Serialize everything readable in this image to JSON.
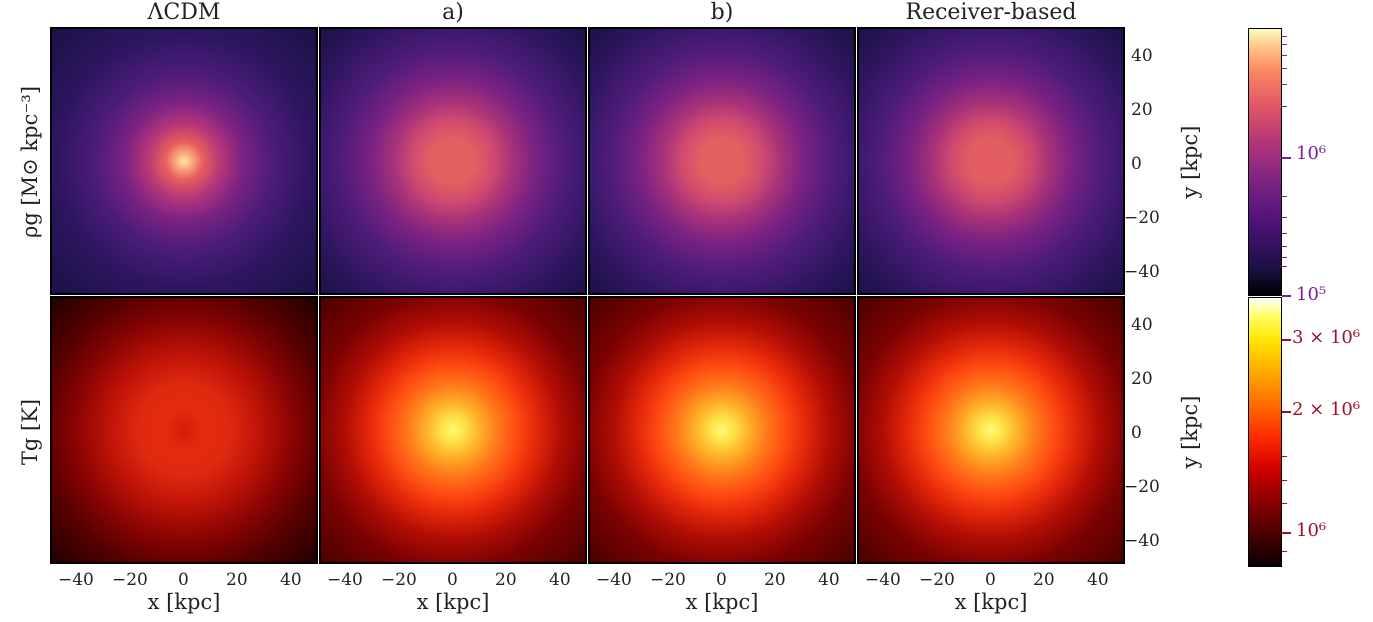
{
  "columns": [
    "ΛCDM",
    "a)",
    "b)",
    "Receiver-based"
  ],
  "rows": [
    {
      "label": "ρg [M⊙ kpc⁻³]",
      "cmap": "magma"
    },
    {
      "label": "Tg [K]",
      "cmap": "hot"
    }
  ],
  "x_axis": {
    "label": "x [kpc]",
    "ticks": [
      "−40",
      "−20",
      "0",
      "20",
      "40"
    ]
  },
  "y_axis": {
    "label": "y [kpc]",
    "ticks": [
      "40",
      "20",
      "0",
      "−20",
      "−40"
    ]
  },
  "colorbars": {
    "density": {
      "ticks": [
        "10⁶",
        "10⁵"
      ],
      "color": "#7a1f9a"
    },
    "temperature": {
      "ticks": [
        "3 × 10⁶",
        "2 × 10⁶",
        "10⁶"
      ],
      "color": "#a0102a"
    }
  },
  "chart_data": [
    {
      "type": "heatmap",
      "title": "",
      "row": "ρg [M⊙ kpc⁻³]",
      "xlabel": "x [kpc]",
      "ylabel": "y [kpc]",
      "xlim": [
        -50,
        50
      ],
      "ylim": [
        -50,
        50
      ],
      "colormap": "magma",
      "scale": "log",
      "clim": [
        100000,
        9000000
      ],
      "panels": [
        {
          "model": "ΛCDM",
          "center_value": 7000000,
          "core_radius_kpc": 5,
          "profile": "peaked"
        },
        {
          "model": "a)",
          "center_value": 1200000,
          "core_radius_kpc": 28,
          "profile": "cored"
        },
        {
          "model": "b)",
          "center_value": 1200000,
          "core_radius_kpc": 28,
          "profile": "cored"
        },
        {
          "model": "Receiver-based",
          "center_value": 1200000,
          "core_radius_kpc": 28,
          "profile": "cored"
        }
      ]
    },
    {
      "type": "heatmap",
      "title": "",
      "row": "Tg [K]",
      "xlabel": "x [kpc]",
      "ylabel": "y [kpc]",
      "xlim": [
        -50,
        50
      ],
      "ylim": [
        -50,
        50
      ],
      "colormap": "hot",
      "scale": "log",
      "clim": [
        800000,
        3700000
      ],
      "panels": [
        {
          "model": "ΛCDM",
          "center_value": 1600000,
          "core_radius_kpc": 30,
          "profile": "flat"
        },
        {
          "model": "a)",
          "center_value": 3500000,
          "core_radius_kpc": 8,
          "profile": "peaked"
        },
        {
          "model": "b)",
          "center_value": 3500000,
          "core_radius_kpc": 8,
          "profile": "peaked"
        },
        {
          "model": "Receiver-based",
          "center_value": 3500000,
          "core_radius_kpc": 8,
          "profile": "peaked"
        }
      ]
    }
  ]
}
